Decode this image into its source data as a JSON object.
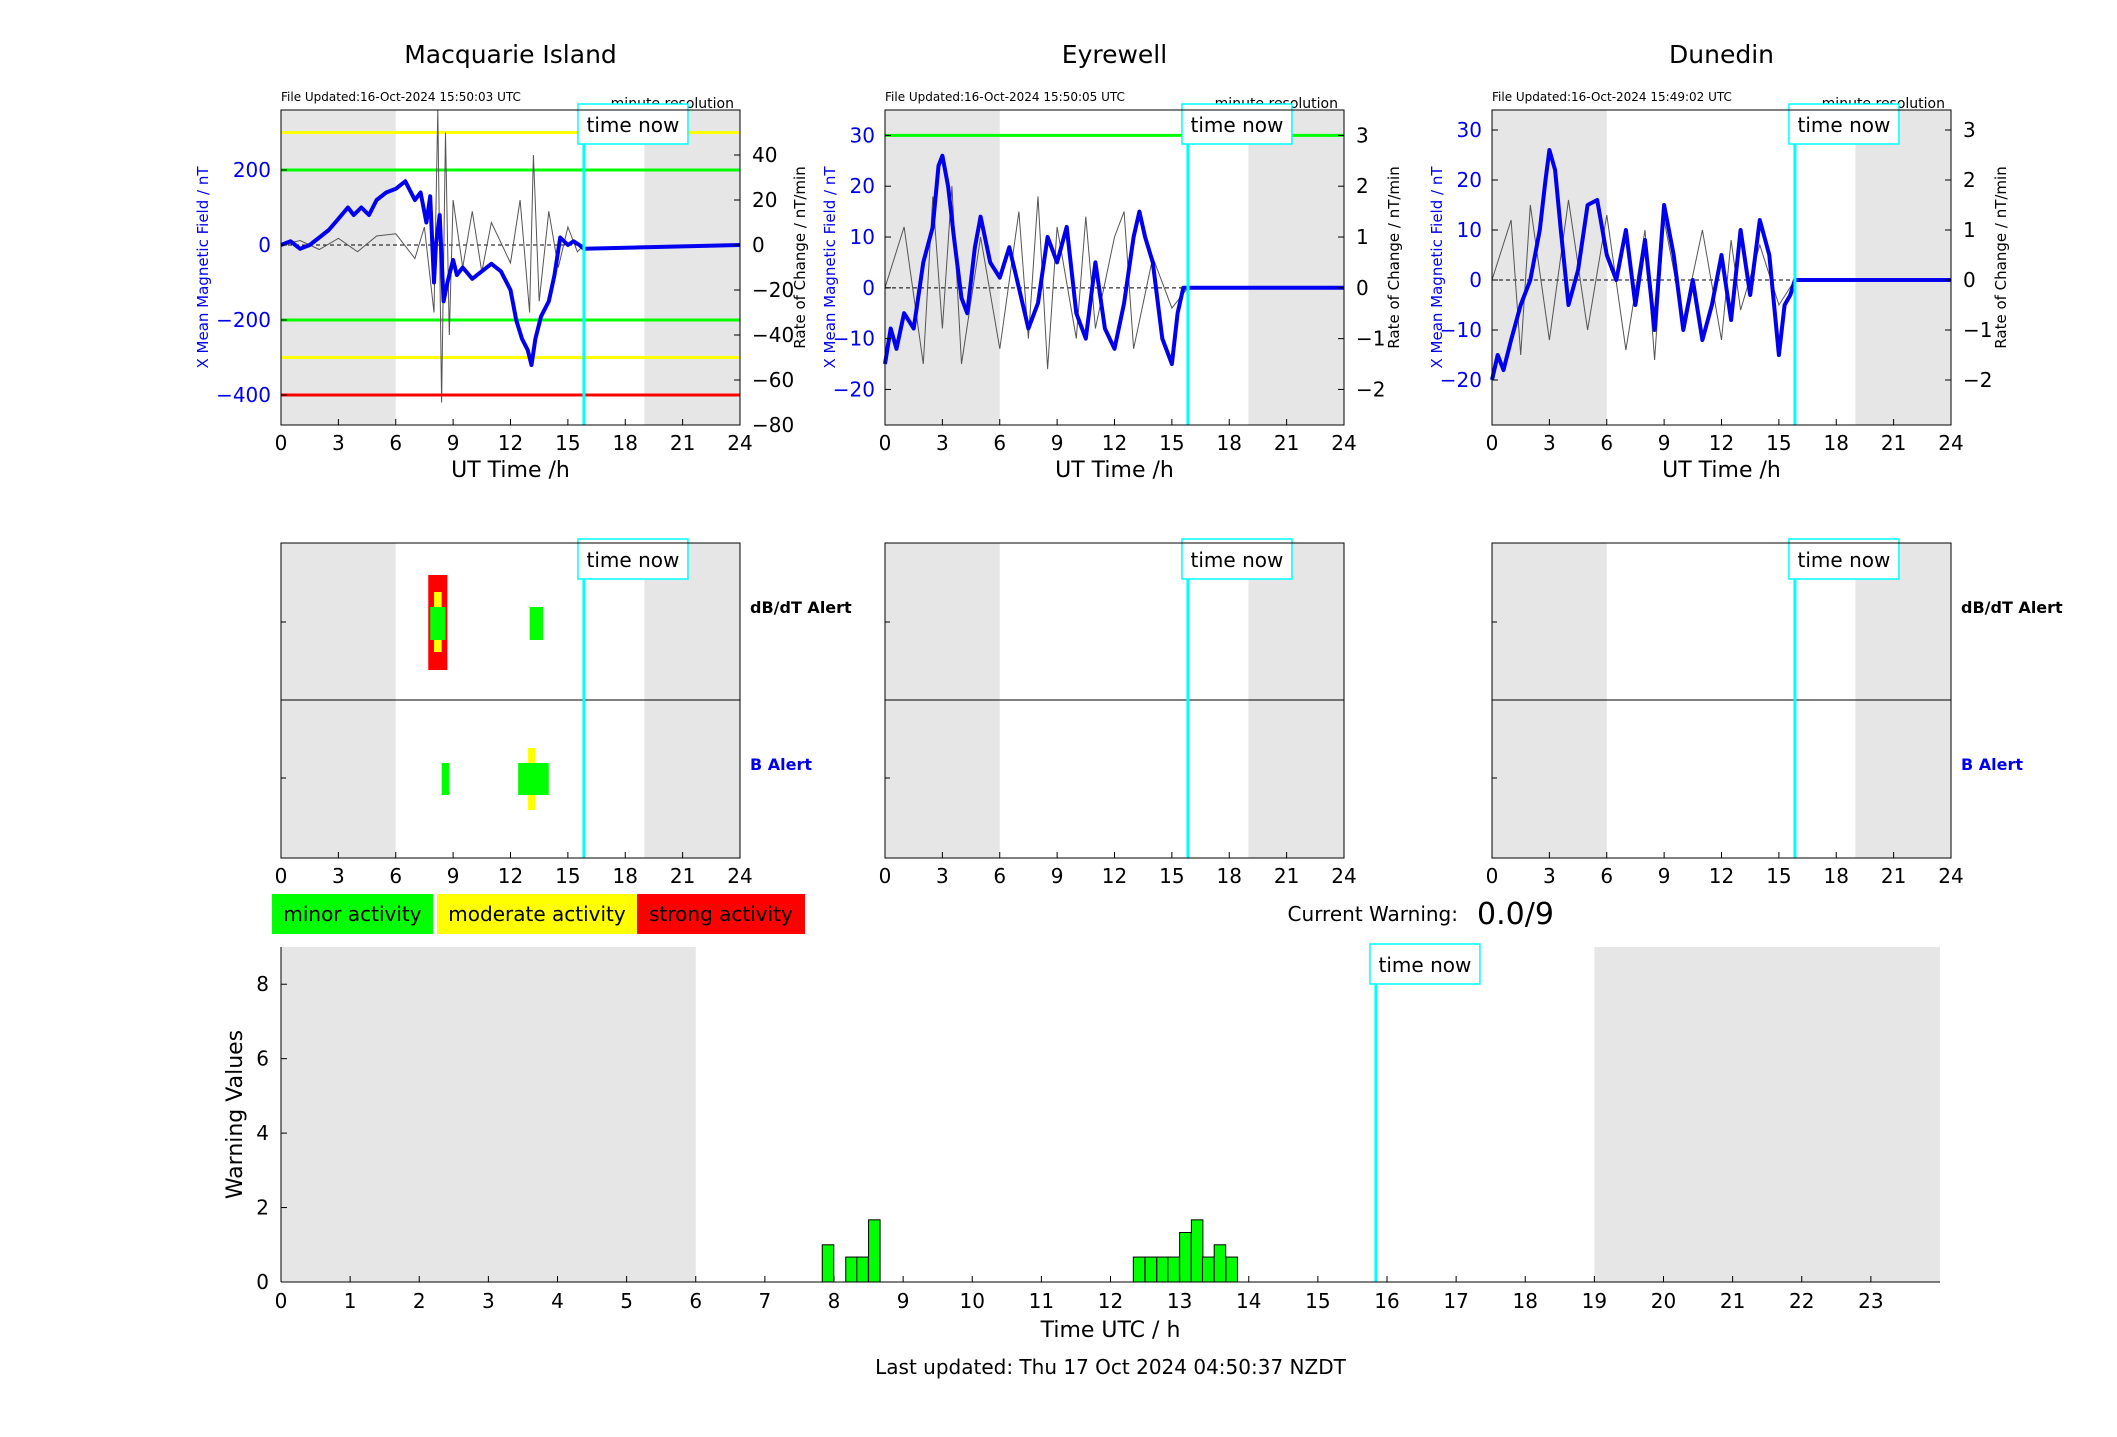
{
  "colors": {
    "field_line": "#0000ee",
    "derivative_line": "#555555",
    "night_shade": "#e6e6e6",
    "time_now": "#00ffff",
    "minor": "#00ff00",
    "moderate": "#ffff00",
    "strong": "#ff0000",
    "axis_blue": "#0000ee"
  },
  "time_now_hour": 15.84,
  "night_shading_hours": [
    [
      0,
      6
    ],
    [
      19,
      24
    ]
  ],
  "stations": [
    {
      "name": "Macquarie Island",
      "file_updated": "File Updated:16-Oct-2024 15:50:03 UTC",
      "resolution": "minute resolution",
      "time_now_label": "time now",
      "ylabel_left": "X Mean Magnetic Field / nT",
      "ylabel_right": "Rate of Change / nT/min",
      "xlabel": "UT Time /h",
      "xticks": [
        0,
        3,
        6,
        9,
        12,
        15,
        18,
        21,
        24
      ],
      "xlim": [
        0,
        24
      ],
      "ylim_left": [
        -480,
        360
      ],
      "yticks_left": [
        -400,
        -200,
        0,
        200
      ],
      "ylim_right": [
        -80,
        60
      ],
      "yticks_right": [
        -80,
        -60,
        -40,
        -20,
        0,
        20,
        40
      ],
      "threshold_lines": [
        {
          "value": 300,
          "color": "#ffff00"
        },
        {
          "value": 200,
          "color": "#00ff00"
        },
        {
          "value": -200,
          "color": "#00ff00"
        },
        {
          "value": -300,
          "color": "#ffff00"
        },
        {
          "value": -400,
          "color": "#ff0000"
        }
      ],
      "field_series": {
        "hours": [
          0,
          0.5,
          1,
          1.5,
          2,
          2.5,
          3,
          3.5,
          3.8,
          4.2,
          4.6,
          5,
          5.5,
          6,
          6.5,
          7,
          7.3,
          7.6,
          7.8,
          8,
          8.1,
          8.3,
          8.5,
          8.7,
          9,
          9.2,
          9.5,
          10,
          10.5,
          11,
          11.5,
          12,
          12.3,
          12.6,
          12.9,
          13.1,
          13.3,
          13.6,
          14,
          14.3,
          14.6,
          15,
          15.3,
          15.6,
          15.84,
          24
        ],
        "values": [
          0,
          10,
          -10,
          0,
          20,
          40,
          70,
          100,
          80,
          100,
          80,
          120,
          140,
          150,
          170,
          120,
          140,
          60,
          130,
          -100,
          0,
          80,
          -150,
          -100,
          -40,
          -80,
          -60,
          -90,
          -70,
          -50,
          -70,
          -120,
          -200,
          -250,
          -280,
          -320,
          -250,
          -190,
          -150,
          -80,
          20,
          0,
          10,
          0,
          -10,
          0
        ]
      },
      "rate_series": {
        "hours": [
          0,
          1,
          2,
          3,
          4,
          5,
          6,
          7,
          7.5,
          8,
          8.2,
          8.4,
          8.6,
          8.8,
          9,
          9.5,
          10,
          10.5,
          11,
          12,
          12.5,
          13,
          13.2,
          13.5,
          14,
          14.5,
          15,
          15.5,
          15.84
        ],
        "values": [
          0,
          2,
          -2,
          3,
          -3,
          4,
          5,
          -6,
          8,
          -30,
          60,
          -70,
          50,
          -40,
          20,
          -10,
          15,
          -12,
          10,
          -8,
          20,
          -30,
          40,
          -25,
          15,
          -10,
          8,
          -3,
          0
        ]
      },
      "alert_panel": {
        "dbdt_label": "dB/dT Alert",
        "b_label": "B Alert",
        "xticks": [
          0,
          3,
          6,
          9,
          12,
          15,
          18,
          21,
          24
        ],
        "dbdt_blocks": [
          {
            "start": 7.7,
            "end": 8.7,
            "level": "strong"
          },
          {
            "start": 8.0,
            "end": 8.4,
            "level": "moderate"
          },
          {
            "start": 7.8,
            "end": 8.6,
            "level": "minor"
          },
          {
            "start": 13.0,
            "end": 13.7,
            "level": "minor"
          }
        ],
        "b_blocks": [
          {
            "start": 8.4,
            "end": 8.8,
            "level": "minor"
          },
          {
            "start": 12.9,
            "end": 13.3,
            "level": "moderate"
          },
          {
            "start": 12.4,
            "end": 14.0,
            "level": "minor"
          }
        ]
      }
    },
    {
      "name": "Eyrewell",
      "file_updated": "File Updated:16-Oct-2024 15:50:05 UTC",
      "resolution": "minute resolution",
      "time_now_label": "time now",
      "ylabel_left": "X Mean Magnetic Field / nT",
      "ylabel_right": "Rate of Change / nT/min",
      "xlabel": "UT Time /h",
      "xticks": [
        0,
        3,
        6,
        9,
        12,
        15,
        18,
        21,
        24
      ],
      "xlim": [
        0,
        24
      ],
      "ylim_left": [
        -27,
        35
      ],
      "yticks_left": [
        -20,
        -10,
        0,
        10,
        20,
        30
      ],
      "ylim_right": [
        -2.7,
        3.5
      ],
      "yticks_right": [
        -2,
        -1,
        0,
        1,
        2,
        3
      ],
      "threshold_lines": [
        {
          "value": 30,
          "color": "#00ff00"
        }
      ],
      "field_series": {
        "hours": [
          0,
          0.3,
          0.6,
          1,
          1.5,
          2,
          2.5,
          2.8,
          3,
          3.3,
          3.6,
          4,
          4.3,
          4.7,
          5,
          5.5,
          6,
          6.5,
          7,
          7.5,
          8,
          8.5,
          9,
          9.5,
          10,
          10.5,
          11,
          11.5,
          12,
          12.5,
          13,
          13.3,
          13.6,
          14,
          14.5,
          15,
          15.3,
          15.6,
          15.84,
          24
        ],
        "values": [
          -15,
          -8,
          -12,
          -5,
          -8,
          5,
          12,
          24,
          26,
          20,
          10,
          -2,
          -5,
          8,
          14,
          5,
          2,
          8,
          0,
          -8,
          -3,
          10,
          5,
          12,
          -5,
          -10,
          5,
          -8,
          -12,
          -3,
          10,
          15,
          10,
          5,
          -10,
          -15,
          -5,
          0,
          0,
          0
        ]
      },
      "rate_series": {
        "hours": [
          0,
          1,
          2,
          2.5,
          3,
          3.5,
          4,
          5,
          6,
          7,
          7.5,
          8,
          8.5,
          9,
          10,
          10.5,
          11,
          12,
          12.5,
          13,
          14,
          15,
          15.84
        ],
        "values": [
          0,
          1.2,
          -1.5,
          1.8,
          -0.8,
          2.0,
          -1.5,
          1.0,
          -1.2,
          1.5,
          -1.0,
          1.8,
          -1.6,
          1.2,
          -1.0,
          1.4,
          -0.8,
          1.0,
          1.5,
          -1.2,
          0.6,
          -0.4,
          0
        ]
      },
      "alert_panel": {
        "dbdt_label": "",
        "b_label": "",
        "xticks": [
          0,
          3,
          6,
          9,
          12,
          15,
          18,
          21,
          24
        ],
        "dbdt_blocks": [],
        "b_blocks": []
      }
    },
    {
      "name": "Dunedin",
      "file_updated": "File Updated:16-Oct-2024 15:49:02 UTC",
      "resolution": "minute resolution",
      "time_now_label": "time now",
      "ylabel_left": "X Mean Magnetic Field / nT",
      "ylabel_right": "Rate of Change / nT/min",
      "xlabel": "UT Time /h",
      "xticks": [
        0,
        3,
        6,
        9,
        12,
        15,
        18,
        21,
        24
      ],
      "xlim": [
        0,
        24
      ],
      "ylim_left": [
        -29,
        34
      ],
      "yticks_left": [
        -20,
        -10,
        0,
        10,
        20,
        30
      ],
      "ylim_right": [
        -2.9,
        3.4
      ],
      "yticks_right": [
        -2,
        -1,
        0,
        1,
        2,
        3
      ],
      "threshold_lines": [],
      "field_series": {
        "hours": [
          0,
          0.3,
          0.6,
          1,
          1.5,
          2,
          2.5,
          2.8,
          3,
          3.3,
          3.6,
          4,
          4.5,
          5,
          5.5,
          6,
          6.5,
          7,
          7.5,
          8,
          8.5,
          9,
          9.5,
          10,
          10.5,
          11,
          11.5,
          12,
          12.5,
          13,
          13.5,
          14,
          14.5,
          15,
          15.3,
          15.6,
          15.84,
          24
        ],
        "values": [
          -20,
          -15,
          -18,
          -12,
          -5,
          0,
          10,
          20,
          26,
          22,
          10,
          -5,
          2,
          15,
          16,
          5,
          0,
          10,
          -5,
          8,
          -10,
          15,
          5,
          -10,
          0,
          -12,
          -5,
          5,
          -8,
          10,
          -3,
          12,
          5,
          -15,
          -5,
          -3,
          0,
          0
        ]
      },
      "rate_series": {
        "hours": [
          0,
          1,
          1.5,
          2,
          3,
          4,
          5,
          6,
          7,
          8,
          8.5,
          9,
          10,
          11,
          12,
          12.5,
          13,
          14,
          15,
          15.84
        ],
        "values": [
          0,
          1.2,
          -1.5,
          1.5,
          -1.2,
          1.6,
          -1.0,
          1.3,
          -1.4,
          1.0,
          -1.6,
          1.2,
          -0.8,
          1.0,
          -1.2,
          0.8,
          -0.6,
          0.7,
          -0.5,
          0
        ]
      },
      "alert_panel": {
        "dbdt_label": "dB/dT Alert",
        "b_label": "B Alert",
        "xticks": [
          0,
          3,
          6,
          9,
          12,
          15,
          18,
          21,
          24
        ],
        "dbdt_blocks": [],
        "b_blocks": []
      }
    }
  ],
  "legend": {
    "minor": "minor activity",
    "moderate": "moderate activity",
    "strong": "strong activity"
  },
  "current_warning": {
    "label": "Current Warning:",
    "value": "0.0/9"
  },
  "chart_data": {
    "type": "bar",
    "ylabel": "Warning Values",
    "xlabel": "Time UTC / h",
    "xlim": [
      0,
      24
    ],
    "ylim": [
      0,
      9
    ],
    "yticks": [
      0,
      2,
      4,
      6,
      8
    ],
    "xticks": [
      0,
      1,
      2,
      3,
      4,
      5,
      6,
      7,
      8,
      9,
      10,
      11,
      12,
      13,
      14,
      15,
      16,
      17,
      18,
      19,
      20,
      21,
      22,
      23
    ],
    "bar_width_hours": 0.1667,
    "bars": [
      {
        "x": 7.83,
        "value": 1.0
      },
      {
        "x": 8.17,
        "value": 0.67
      },
      {
        "x": 8.33,
        "value": 0.67
      },
      {
        "x": 8.5,
        "value": 1.67
      },
      {
        "x": 12.33,
        "value": 0.67
      },
      {
        "x": 12.5,
        "value": 0.67
      },
      {
        "x": 12.67,
        "value": 0.67
      },
      {
        "x": 12.83,
        "value": 0.67
      },
      {
        "x": 13.0,
        "value": 1.33
      },
      {
        "x": 13.17,
        "value": 1.67
      },
      {
        "x": 13.33,
        "value": 0.67
      },
      {
        "x": 13.5,
        "value": 1.0
      },
      {
        "x": 13.67,
        "value": 0.67
      }
    ],
    "time_now_label": "time now",
    "last_updated": "Last updated: Thu 17 Oct 2024 04:50:37 NZDT"
  }
}
